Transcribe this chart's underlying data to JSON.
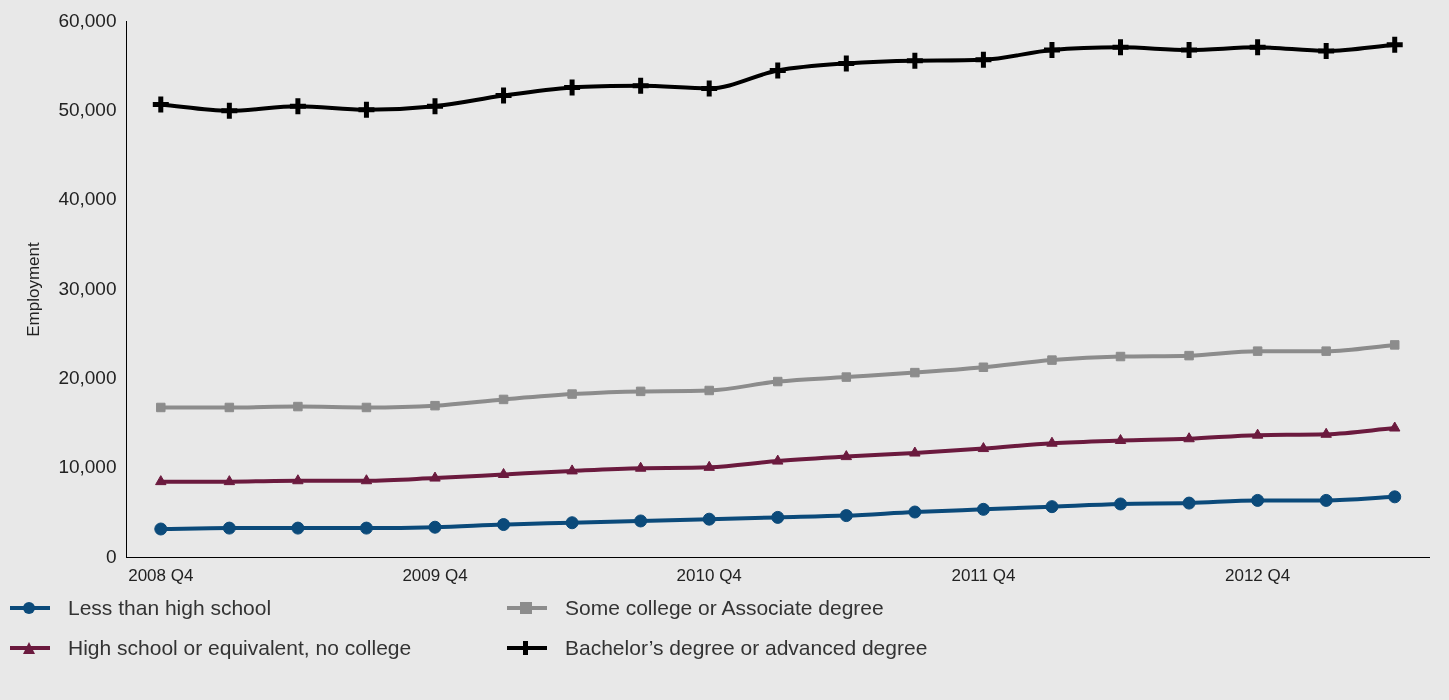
{
  "chart_data": {
    "type": "line",
    "ylabel": "Employment",
    "categories": [
      "2008 Q4",
      null,
      null,
      null,
      "2009 Q4",
      null,
      null,
      null,
      "2010 Q4",
      null,
      null,
      null,
      "2011 Q4",
      null,
      null,
      null,
      "2012 Q4",
      null,
      null
    ],
    "series": [
      {
        "name": "Less than high school",
        "color": "#0b4a7a",
        "marker": "circle",
        "values": [
          3200,
          3300,
          3300,
          3300,
          3400,
          3700,
          3900,
          4100,
          4300,
          4500,
          4700,
          5100,
          5400,
          5700,
          6000,
          6100,
          6400,
          6400,
          6800
        ]
      },
      {
        "name": "Some college or Associate degree",
        "color": "#8c8c8c",
        "marker": "square",
        "values": [
          16800,
          16800,
          16900,
          16800,
          17000,
          17700,
          18300,
          18600,
          18700,
          19700,
          20200,
          20700,
          21300,
          22100,
          22500,
          22600,
          23100,
          23100,
          23800
        ]
      },
      {
        "name": "High school or equivalent, no college",
        "color": "#6b1a3e",
        "marker": "triangle",
        "values": [
          8500,
          8500,
          8600,
          8600,
          8900,
          9300,
          9700,
          10000,
          10100,
          10800,
          11300,
          11700,
          12200,
          12800,
          13100,
          13300,
          13700,
          13800,
          14500
        ]
      },
      {
        "name": "Bachelor’s degree or advanced degree",
        "color": "#000000",
        "marker": "cross",
        "values": [
          50700,
          50000,
          50500,
          50100,
          50500,
          51700,
          52600,
          52800,
          52500,
          54500,
          55300,
          55600,
          55700,
          56800,
          57100,
          56800,
          57100,
          56700,
          57400
        ]
      }
    ],
    "ylim": [
      0,
      60000
    ],
    "yticks": [
      0,
      {
        "value": 10000,
        "label": "10,000"
      },
      {
        "value": 20000,
        "label": "20,000"
      },
      {
        "value": 30000,
        "label": "30,000"
      },
      {
        "value": 40000,
        "label": "40,000"
      },
      {
        "value": 50000,
        "label": "50,000"
      },
      {
        "value": 60000,
        "label": "60,000"
      }
    ],
    "grid": false,
    "legend": "bottom"
  }
}
